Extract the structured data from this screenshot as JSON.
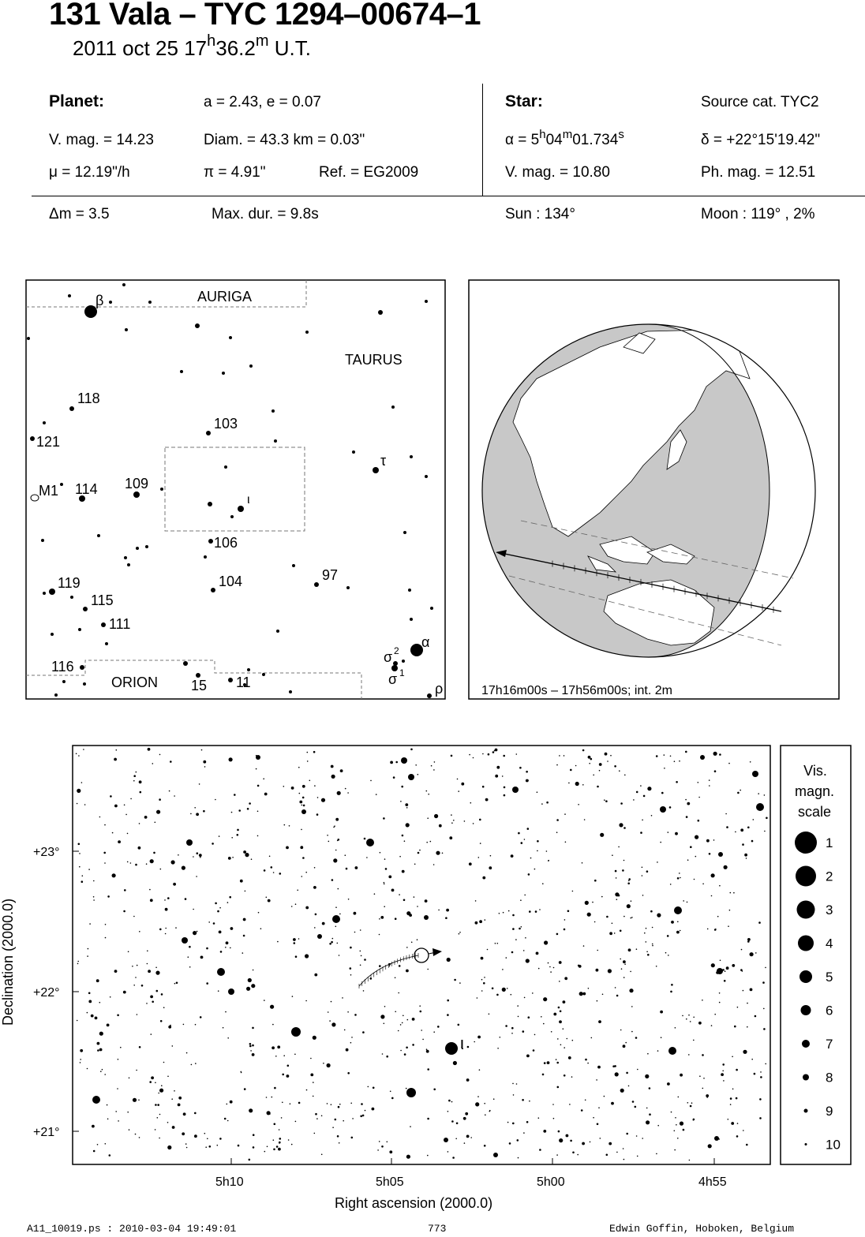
{
  "title": "131 Vala  –  TYC 1294–00674–1",
  "subtitle": {
    "date": "2011 oct 25",
    "hour": "17",
    "h": "h",
    "min": "36.2",
    "m": "m",
    "ut": "U.T."
  },
  "planet": {
    "heading": "Planet:",
    "ae": "a = 2.43, e = 0.07",
    "vmag": "V. mag. = 14.23",
    "diam": "Diam. = 43.3 km = 0.03\"",
    "mu": "μ =  12.19\"/h",
    "pi": "π =  4.91\"",
    "ref": "Ref. = EG2009"
  },
  "star": {
    "heading": "Star:",
    "source": "Source cat.  TYC2",
    "ra_prefix": "α =  5",
    "ra_h": "h",
    "ra_mid": "04",
    "ra_m": "m",
    "ra_sec": "01.734",
    "ra_s": "s",
    "dec": "δ = +22°15'19.42\"",
    "vmag": "V. mag. = 10.80",
    "phmag": "Ph. mag. = 12.51"
  },
  "event": {
    "dm": "Δm = 3.5",
    "maxdur": "Max. dur. = 9.8s",
    "sun": "Sun : 134°",
    "moon": "Moon : 119° ,  2%"
  },
  "finder": {
    "constellations": [
      "AURIGA",
      "TAURUS",
      "ORION"
    ],
    "labels": [
      "β",
      "118",
      "121",
      "M1",
      "114",
      "109",
      "103",
      "ι",
      "106",
      "104",
      "97",
      "τ",
      "119",
      "115",
      "111",
      "116",
      "15",
      "11",
      "α",
      "σ",
      "2",
      "σ",
      "1",
      "ρ"
    ]
  },
  "globe": {
    "caption": "17h16m00s – 17h56m00s; int.  2m"
  },
  "starmap": {
    "xlabel": "Right ascension (2000.0)",
    "ylabel": "Declination (2000.0)",
    "xticks": [
      "5h10",
      "5h05",
      "5h00",
      "4h55"
    ],
    "yticks": [
      "+23°",
      "+22°",
      "+21°"
    ],
    "star_label": "ι"
  },
  "magscale": {
    "title": [
      "Vis.",
      "magn.",
      "scale"
    ],
    "values": [
      "1",
      "2",
      "3",
      "4",
      "5",
      "6",
      "7",
      "8",
      "9",
      "10"
    ]
  },
  "footer": {
    "left": "A11_10019.ps : 2010-03-04 19:49:01",
    "center": "773",
    "right": "Edwin Goffin, Hoboken, Belgium"
  }
}
